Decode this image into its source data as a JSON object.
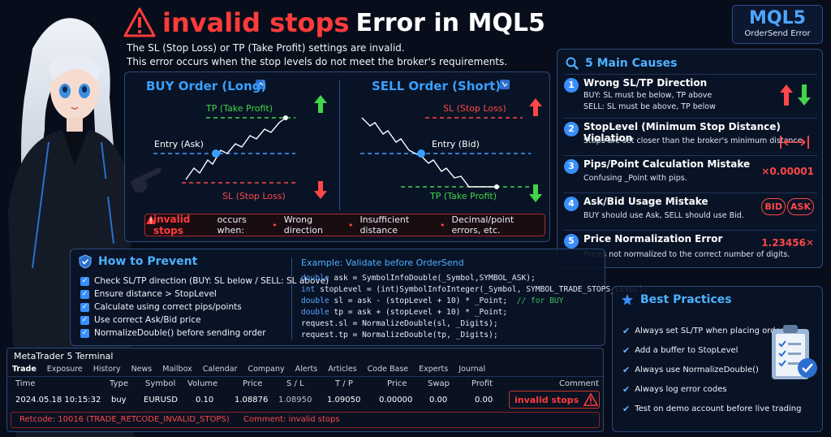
{
  "title": {
    "code": "invalid stops",
    "rest": "Error in MQL5"
  },
  "intro": [
    "The SL (Stop Loss) or TP (Take Profit) settings are invalid.",
    "This error occurs when the stop levels do not meet the broker's requirements."
  ],
  "badge": {
    "title": "MQL5",
    "subtitle": "OrderSend Error"
  },
  "buy": {
    "title": "BUY Order (Long)",
    "tp": "TP (Take Profit)",
    "entry": "Entry (Ask)",
    "sl": "SL (Stop Loss)"
  },
  "sell": {
    "title": "SELL Order (Short)",
    "sl": "SL (Stop Loss)",
    "entry": "Entry (Bid)",
    "tp": "TP (Take Profit)"
  },
  "invalid_bar": {
    "code": "invalid stops",
    "text": "occurs when:",
    "reasons": [
      "Wrong direction",
      "Insufficient distance",
      "Decimal/point errors, etc."
    ]
  },
  "causes": {
    "title": "5 Main Causes",
    "items": [
      {
        "num": "1",
        "title": "Wrong SL/TP Direction",
        "desc": [
          "BUY: SL must be below, TP above",
          "SELL: SL must be above, TP below"
        ]
      },
      {
        "num": "2",
        "title": "StopLevel (Minimum Stop Distance) Violation",
        "desc": [
          "Stops are set closer than the broker's minimum distance."
        ]
      },
      {
        "num": "3",
        "title": "Pips/Point Calculation Mistake",
        "desc": [
          "Confusing _Point with pips."
        ],
        "visual": "×0.00001"
      },
      {
        "num": "4",
        "title": "Ask/Bid Usage Mistake",
        "desc": [
          "BUY should use Ask, SELL should use Bid."
        ],
        "visual_bid": "BID",
        "visual_ask": "ASK"
      },
      {
        "num": "5",
        "title": "Price Normalization Error",
        "desc": [
          "Prices not normalized to the correct number of digits."
        ],
        "visual": "1.23456"
      }
    ]
  },
  "prevent": {
    "title": "How to Prevent",
    "items": [
      "Check SL/TP direction (BUY: SL below / SELL: SL above)",
      "Ensure distance > StopLevel",
      "Calculate using correct pips/points",
      "Use correct Ask/Bid price",
      "NormalizeDouble() before sending order"
    ],
    "code_title": "Example: Validate before OrderSend",
    "code": [
      {
        "kw": "double",
        "rest": " ask = SymbolInfoDouble(_Symbol,SYMBOL_ASK);",
        "cm": ""
      },
      {
        "kw": "int",
        "rest": " stopLevel = (int)SymbolInfoInteger(_Symbol, SYMBOL_TRADE_STOPS_LEVEL);",
        "cm": ""
      },
      {
        "kw": "double",
        "rest": " sl = ask - (stopLevel + 10) * _Point;  ",
        "cm": "// for BUY"
      },
      {
        "kw": "double",
        "rest": " tp = ask + (stopLevel + 10) * _Point;",
        "cm": ""
      },
      {
        "kw": "",
        "rest": "request.sl = NormalizeDouble(sl, _Digits);",
        "cm": ""
      },
      {
        "kw": "",
        "rest": "request.tp = NormalizeDouble(tp, _Digits);",
        "cm": ""
      }
    ]
  },
  "terminal": {
    "title": "MetaTrader 5 Terminal",
    "tabs": [
      "Trade",
      "Exposure",
      "History",
      "News",
      "Mailbox",
      "Calendar",
      "Company",
      "Alerts",
      "Articles",
      "Code Base",
      "Experts",
      "Journal"
    ],
    "columns": [
      "Time",
      "Type",
      "Symbol",
      "Volume",
      "Price",
      "S / L",
      "T / P",
      "Price",
      "Swap",
      "Profit",
      "Comment"
    ],
    "row": [
      "2024.05.18 10:15:32",
      "buy",
      "EURUSD",
      "0.10",
      "1.08876",
      "1.08950",
      "1.09050",
      "0.00000",
      "0.00",
      "0.00"
    ],
    "comment": "invalid stops",
    "retcode": "Retcode: 10016 (TRADE_RETCODE_INVALID_STOPS)",
    "retcode_comment": "Comment: invalid stops"
  },
  "best": {
    "title": "Best Practices",
    "items": [
      "Always set SL/TP when placing orders",
      "Add a buffer to StopLevel",
      "Always use NormalizeDouble()",
      "Always log error codes",
      "Test on demo account before live trading"
    ]
  }
}
